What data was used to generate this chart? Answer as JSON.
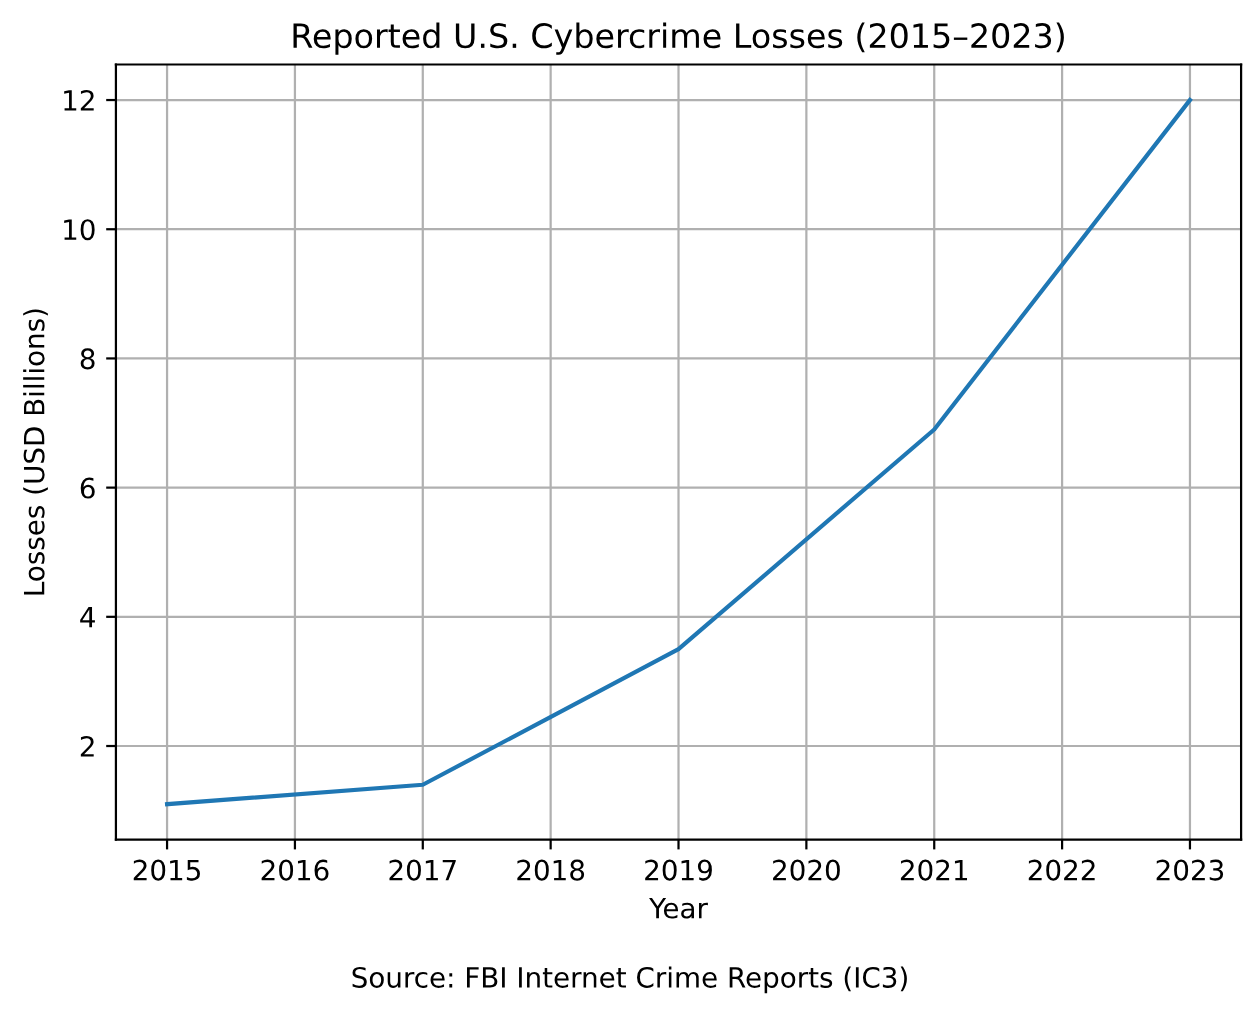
{
  "chart_data": {
    "type": "line",
    "title": "Reported U.S. Cybercrime Losses (2015–2023)",
    "xlabel": "Year",
    "ylabel": "Losses (USD Billions)",
    "x": [
      2015,
      2017,
      2019,
      2021,
      2023
    ],
    "series": [
      {
        "color": "#1f77b4",
        "values": [
          1.1,
          1.4,
          3.5,
          6.9,
          12.0
        ]
      }
    ],
    "xlim": [
      2014.6,
      2023.4
    ],
    "xticks": [
      2015,
      2016,
      2017,
      2018,
      2019,
      2020,
      2021,
      2022,
      2023
    ],
    "ylim": [
      0.55,
      12.55
    ],
    "yticks": [
      2,
      4,
      6,
      8,
      10,
      12
    ],
    "grid": true,
    "marker": "none",
    "line_style": "solid",
    "annotations": [
      "Source: FBI Internet Crime Reports (IC3)"
    ]
  }
}
